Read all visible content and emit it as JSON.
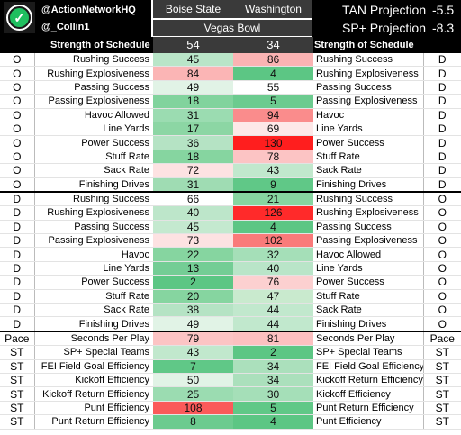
{
  "header": {
    "handles": [
      "@ActionNetworkHQ",
      "@_Collin1"
    ],
    "logo_icon": "check-circle-icon",
    "team_left": "Boise State",
    "team_right": "Washington",
    "bowl": "Vegas Bowl",
    "sos_label": "Strength of Schedule",
    "sos_left": "54",
    "sos_right": "34",
    "projections": [
      {
        "label": "TAN Projection",
        "value": "-5.5"
      },
      {
        "label": "SP+ Projection",
        "value": "-8.3"
      }
    ]
  },
  "colors": {
    "header_bg": "#000000",
    "bowl_bg": "#3a3a3a",
    "good_dark": "#5cc684",
    "good_light": "#e1f3e6",
    "bad_dark": "#ff2020",
    "bad_light": "#fde2e2"
  },
  "rows": [
    {
      "ls": "O",
      "label": "Rushing Success",
      "bv": "45",
      "bc": "#b9e5c8",
      "wv": "86",
      "wc": "#fbb3b3",
      "rlabel": "Rushing Success",
      "rs": "D",
      "sec": false
    },
    {
      "ls": "O",
      "label": "Rushing Explosiveness",
      "bv": "84",
      "bc": "#fbb5b5",
      "wv": "4",
      "wc": "#5cc684",
      "rlabel": "Rushing Explosiveness",
      "rs": "D",
      "sec": false
    },
    {
      "ls": "O",
      "label": "Passing Success",
      "bv": "49",
      "bc": "#e1f3e6",
      "wv": "55",
      "wc": "#ffffff",
      "rlabel": "Passing Success",
      "rs": "D",
      "sec": false
    },
    {
      "ls": "O",
      "label": "Passing Explosiveness",
      "bv": "18",
      "bc": "#81d39d",
      "wv": "5",
      "wc": "#6ccb8f",
      "rlabel": "Passing Explosiveness",
      "rs": "D",
      "sec": false
    },
    {
      "ls": "O",
      "label": "Havoc Allowed",
      "bv": "31",
      "bc": "#9bdcb1",
      "wv": "94",
      "wc": "#fa8c8c",
      "rlabel": "Havoc",
      "rs": "D",
      "sec": false
    },
    {
      "ls": "O",
      "label": "Line Yards",
      "bv": "17",
      "bc": "#8cd6a4",
      "wv": "69",
      "wc": "#fde8e8",
      "rlabel": "Line Yards",
      "rs": "D",
      "sec": false
    },
    {
      "ls": "O",
      "label": "Power Success",
      "bv": "36",
      "bc": "#b5e3c4",
      "wv": "130",
      "wc": "#ff1e1e",
      "rlabel": "Power Success",
      "rs": "D",
      "sec": false
    },
    {
      "ls": "O",
      "label": "Stuff Rate",
      "bv": "18",
      "bc": "#86d5a0",
      "wv": "78",
      "wc": "#fcc4c4",
      "rlabel": "Stuff Rate",
      "rs": "D",
      "sec": false
    },
    {
      "ls": "O",
      "label": "Sack Rate",
      "bv": "72",
      "bc": "#fde2e2",
      "wv": "43",
      "wc": "#c1e8cd",
      "rlabel": "Sack Rate",
      "rs": "D",
      "sec": false
    },
    {
      "ls": "O",
      "label": "Finishing Drives",
      "bv": "31",
      "bc": "#9fdcb3",
      "wv": "9",
      "wc": "#60c887",
      "rlabel": "Finishing Drives",
      "rs": "D",
      "sec": false
    },
    {
      "ls": "D",
      "label": "Rushing Success",
      "bv": "66",
      "bc": "#ffffff",
      "wv": "21",
      "wc": "#86d5a0",
      "rlabel": "Rushing Success",
      "rs": "O",
      "sec": true
    },
    {
      "ls": "D",
      "label": "Rushing Explosiveness",
      "bv": "40",
      "bc": "#bde6ca",
      "wv": "126",
      "wc": "#ff2a2a",
      "rlabel": "Rushing Explosiveness",
      "rs": "O",
      "sec": false
    },
    {
      "ls": "D",
      "label": "Passing Success",
      "bv": "45",
      "bc": "#c4e9cf",
      "wv": "4",
      "wc": "#5cc684",
      "rlabel": "Passing Success",
      "rs": "O",
      "sec": false
    },
    {
      "ls": "D",
      "label": "Passing Explosiveness",
      "bv": "73",
      "bc": "#fde2e2",
      "wv": "102",
      "wc": "#fa7a7a",
      "rlabel": "Passing Explosiveness",
      "rs": "O",
      "sec": false
    },
    {
      "ls": "D",
      "label": "Havoc",
      "bv": "22",
      "bc": "#86d5a0",
      "wv": "32",
      "wc": "#a5dfb8",
      "rlabel": "Havoc Allowed",
      "rs": "O",
      "sec": false
    },
    {
      "ls": "D",
      "label": "Line Yards",
      "bv": "13",
      "bc": "#74cd95",
      "wv": "40",
      "wc": "#b9e5c8",
      "rlabel": "Line Yards",
      "rs": "O",
      "sec": false
    },
    {
      "ls": "D",
      "label": "Power Success",
      "bv": "2",
      "bc": "#5cc684",
      "wv": "76",
      "wc": "#fcd0d0",
      "rlabel": "Power Success",
      "rs": "O",
      "sec": false
    },
    {
      "ls": "D",
      "label": "Stuff Rate",
      "bv": "20",
      "bc": "#86d5a0",
      "wv": "47",
      "wc": "#c9eace",
      "rlabel": "Stuff Rate",
      "rs": "O",
      "sec": false
    },
    {
      "ls": "D",
      "label": "Sack Rate",
      "bv": "38",
      "bc": "#b5e3c4",
      "wv": "44",
      "wc": "#c1e8cd",
      "rlabel": "Sack Rate",
      "rs": "O",
      "sec": false
    },
    {
      "ls": "D",
      "label": "Finishing Drives",
      "bv": "49",
      "bc": "#e1f3e6",
      "wv": "44",
      "wc": "#c1e8cd",
      "rlabel": "Finishing Drives",
      "rs": "O",
      "sec": false
    },
    {
      "ls": "Pace",
      "label": "Seconds Per Play",
      "bv": "79",
      "bc": "#fcc4c4",
      "wv": "81",
      "wc": "#fcc0c0",
      "rlabel": "Seconds Per Play",
      "rs": "Pace",
      "sec": true
    },
    {
      "ls": "ST",
      "label": "SP+ Special Teams",
      "bv": "43",
      "bc": "#c1e8cd",
      "wv": "2",
      "wc": "#5cc684",
      "rlabel": "SP+ Special Teams",
      "rs": "ST",
      "sec": false
    },
    {
      "ls": "ST",
      "label": "FEI Field Goal Efficiency",
      "bv": "7",
      "bc": "#60c887",
      "wv": "34",
      "wc": "#abe0bc",
      "rlabel": "FEI Field Goal Efficiency",
      "rs": "ST",
      "sec": false
    },
    {
      "ls": "ST",
      "label": "Kickoff Efficiency",
      "bv": "50",
      "bc": "#e1f3e6",
      "wv": "34",
      "wc": "#abe0bc",
      "rlabel": "Kickoff Return Efficiency",
      "rs": "ST",
      "sec": false
    },
    {
      "ls": "ST",
      "label": "Kickoff Return Efficiency",
      "bv": "25",
      "bc": "#9bdcb1",
      "wv": "30",
      "wc": "#a5dfb8",
      "rlabel": "Kickoff Efficiency",
      "rs": "ST",
      "sec": false
    },
    {
      "ls": "ST",
      "label": "Punt Efficiency",
      "bv": "108",
      "bc": "#fb5a5a",
      "wv": "5",
      "wc": "#60c887",
      "rlabel": "Punt Return Efficiency",
      "rs": "ST",
      "sec": false
    },
    {
      "ls": "ST",
      "label": "Punt Return Efficiency",
      "bv": "8",
      "bc": "#6ccb8f",
      "wv": "4",
      "wc": "#5cc684",
      "rlabel": "Punt Efficiency",
      "rs": "ST",
      "sec": false
    }
  ]
}
